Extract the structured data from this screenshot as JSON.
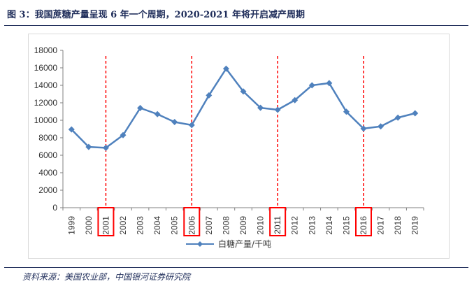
{
  "figure": {
    "title": "图 3：我国蔗糖产量呈现 6 年一个周期，2020-2021 年将开启减产周期",
    "source": "资料来源：美国农业部，中国银河证券研究院"
  },
  "chart_data": {
    "type": "line",
    "title": "",
    "xlabel": "",
    "ylabel": "",
    "categories": [
      "1999",
      "2000",
      "2001",
      "2002",
      "2003",
      "2004",
      "2005",
      "2006",
      "2007",
      "2008",
      "2009",
      "2010",
      "2011",
      "2012",
      "2013",
      "2014",
      "2015",
      "2016",
      "2017",
      "2018",
      "2019"
    ],
    "series": [
      {
        "name": "白糖产量/千吨",
        "values": [
          8950,
          6950,
          6850,
          8300,
          11400,
          10700,
          9800,
          9450,
          12850,
          15900,
          13300,
          11430,
          11200,
          12300,
          14000,
          14250,
          10980,
          9050,
          9300,
          10300,
          10800
        ],
        "color": "#4f81bd",
        "marker": "diamond"
      }
    ],
    "ylim": [
      0,
      18000
    ],
    "yticks": [
      0,
      2000,
      4000,
      6000,
      8000,
      10000,
      12000,
      14000,
      16000,
      18000
    ],
    "grid": false,
    "legend": {
      "position": "bottom"
    },
    "highlighted_years": [
      "2001",
      "2006",
      "2011",
      "2016"
    ],
    "highlight_color": "#ff0000"
  }
}
